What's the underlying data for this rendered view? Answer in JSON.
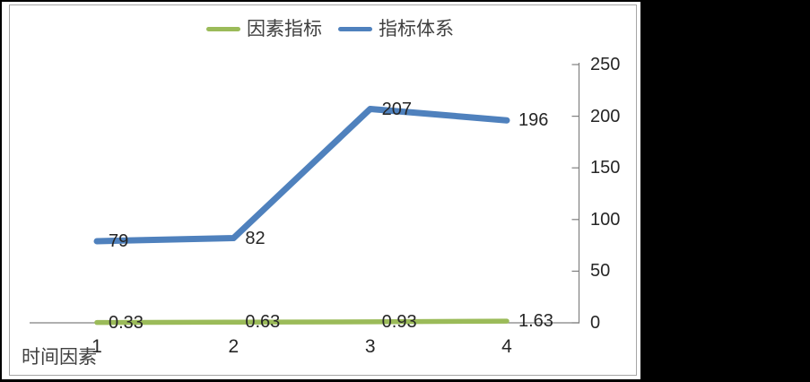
{
  "slide": {
    "background_color": "#000000",
    "panel_color": "#ffffff",
    "panel_border_color": "#a6a6a6"
  },
  "chart_data": {
    "type": "line",
    "categories": [
      "1",
      "2",
      "3",
      "4"
    ],
    "series": [
      {
        "name": "因素指标",
        "color": "#9BBB59",
        "values": [
          0.33,
          0.63,
          0.93,
          1.63
        ]
      },
      {
        "name": "指标体系",
        "color": "#4F81BD",
        "values": [
          79,
          82,
          207,
          196
        ]
      }
    ],
    "xlabel": "时间因素",
    "ylabel": "",
    "ylim": [
      0,
      250
    ],
    "y_ticks": [
      0,
      50,
      100,
      150,
      200,
      250
    ],
    "grid": false,
    "legend_position": "top",
    "data_labels": true,
    "data_label_position": "right",
    "axis_color": "#808080",
    "label_color": "#262626"
  }
}
